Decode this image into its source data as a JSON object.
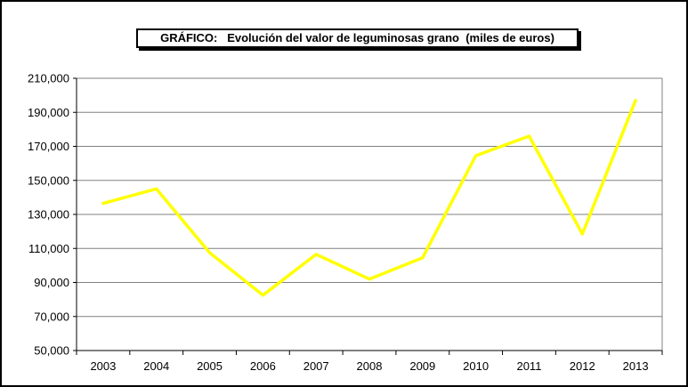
{
  "chart_data": {
    "type": "line",
    "title": "GRÁFICO:   Evolución del valor de leguminosas grano  (miles de euros)",
    "categories": [
      "2003",
      "2004",
      "2005",
      "2006",
      "2007",
      "2008",
      "2009",
      "2010",
      "2011",
      "2012",
      "2013"
    ],
    "series": [
      {
        "values": [
          136500,
          145000,
          107500,
          82500,
          106500,
          92000,
          104500,
          164500,
          176000,
          118500,
          197000
        ]
      }
    ],
    "y_ticks": [
      "210,000",
      "190,000",
      "170,000",
      "150,000",
      "130,000",
      "110,000",
      "90,000",
      "70,000",
      "50,000"
    ],
    "ylim": [
      50000,
      210000
    ],
    "grid": true,
    "line_color": "#ffff00",
    "grid_color": "#808080"
  }
}
